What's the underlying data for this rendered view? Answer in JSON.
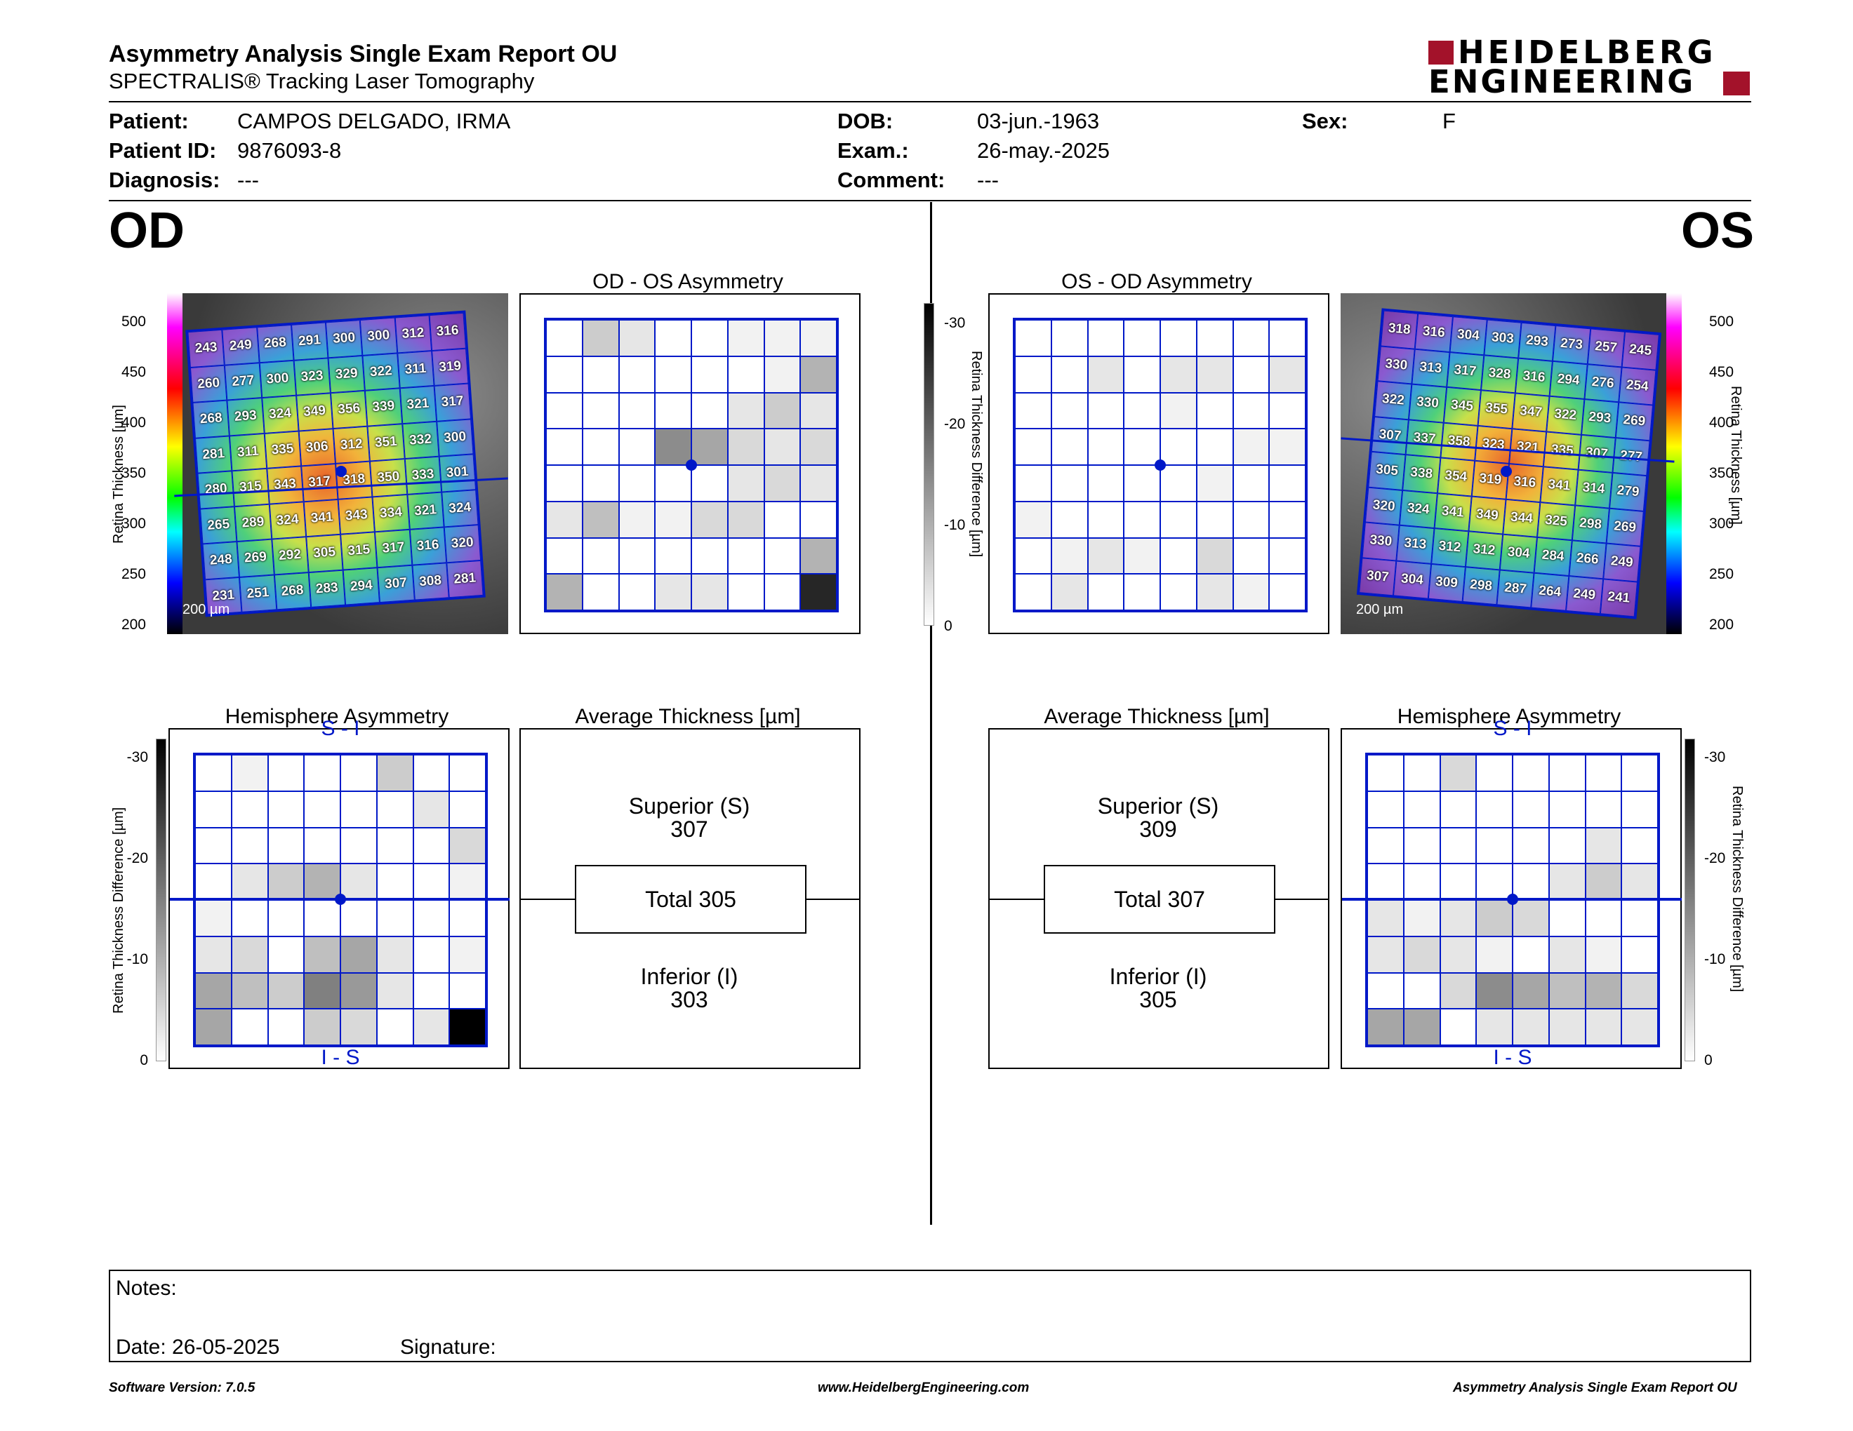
{
  "header": {
    "title": "Asymmetry Analysis Single Exam Report OU",
    "subtitle": "SPECTRALIS® Tracking Laser Tomography",
    "logo_line1": "HEIDELBERG",
    "logo_line2": "ENGINEERING"
  },
  "patient": {
    "patient_label": "Patient:",
    "patient_value": "CAMPOS DELGADO, IRMA",
    "id_label": "Patient ID:",
    "id_value": "9876093-8",
    "diagnosis_label": "Diagnosis:",
    "diagnosis_value": "---",
    "dob_label": "DOB:",
    "dob_value": "03-jun.-1963",
    "exam_label": "Exam.:",
    "exam_value": "26-may.-2025",
    "comment_label": "Comment:",
    "comment_value": "---",
    "sex_label": "Sex:",
    "sex_value": "F"
  },
  "od": {
    "eye_label": "OD",
    "thickness_axis_label": "Retina Thickness [µm]",
    "thickness_ticks": [
      "500",
      "450",
      "400",
      "350",
      "300",
      "250",
      "200"
    ],
    "scale_label": "200 µm",
    "thickness_grid": [
      [
        "243",
        "249",
        "268",
        "291",
        "300",
        "300",
        "312",
        "316"
      ],
      [
        "260",
        "277",
        "300",
        "323",
        "329",
        "322",
        "311",
        "319"
      ],
      [
        "268",
        "293",
        "324",
        "349",
        "356",
        "339",
        "321",
        "317"
      ],
      [
        "281",
        "311",
        "335",
        "306",
        "312",
        "351",
        "332",
        "300"
      ],
      [
        "280",
        "315",
        "343",
        "317",
        "318",
        "350",
        "333",
        "301"
      ],
      [
        "265",
        "289",
        "324",
        "341",
        "343",
        "334",
        "321",
        "324"
      ],
      [
        "248",
        "269",
        "292",
        "305",
        "315",
        "317",
        "316",
        "320"
      ],
      [
        "231",
        "251",
        "268",
        "283",
        "294",
        "307",
        "308",
        "281"
      ]
    ],
    "asym_title": "OD - OS Asymmetry",
    "asym_levels": [
      [
        0,
        0.2,
        0.1,
        0,
        0,
        0.05,
        0.05,
        0.05
      ],
      [
        0,
        0,
        0,
        0,
        0,
        0,
        0.05,
        0.3
      ],
      [
        0,
        0,
        0,
        0,
        0,
        0.1,
        0.2,
        0.1
      ],
      [
        0,
        0,
        0,
        0.45,
        0.35,
        0.15,
        0.1,
        0.15
      ],
      [
        0,
        0,
        0,
        0,
        0,
        0.1,
        0.15,
        0.1
      ],
      [
        0.1,
        0.25,
        0.05,
        0.05,
        0.15,
        0.15,
        0,
        0
      ],
      [
        0,
        0,
        0,
        0,
        0,
        0,
        0,
        0.3
      ],
      [
        0.3,
        0,
        0,
        0.1,
        0.1,
        0,
        0,
        0.85
      ]
    ],
    "hemi_title": "Hemisphere Asymmetry",
    "hemi_top": "S - I",
    "hemi_bottom": "I - S",
    "hemi_levels": [
      [
        0,
        0.05,
        0,
        0,
        0,
        0.2,
        0,
        0
      ],
      [
        0,
        0,
        0,
        0,
        0,
        0,
        0.1,
        0
      ],
      [
        0,
        0,
        0,
        0,
        0,
        0,
        0,
        0.15
      ],
      [
        0,
        0.1,
        0.2,
        0.3,
        0.1,
        0,
        0,
        0.05
      ],
      [
        0.05,
        0,
        0,
        0,
        0,
        0,
        0,
        0
      ],
      [
        0.1,
        0.15,
        0,
        0.25,
        0.35,
        0.1,
        0,
        0.05
      ],
      [
        0.35,
        0.25,
        0.2,
        0.5,
        0.4,
        0.1,
        0,
        0
      ],
      [
        0.35,
        0,
        0,
        0.2,
        0.15,
        0,
        0.1,
        1.0
      ]
    ],
    "avg_title": "Average Thickness [µm]",
    "superior_label": "Superior (S)",
    "superior_value": "307",
    "total_label": "Total 305",
    "inferior_label": "Inferior (I)",
    "inferior_value": "303"
  },
  "os": {
    "eye_label": "OS",
    "thickness_axis_label": "Retina Thickness [µm]",
    "thickness_ticks": [
      "500",
      "450",
      "400",
      "350",
      "300",
      "250",
      "200"
    ],
    "scale_label": "200 µm",
    "thickness_grid": [
      [
        "318",
        "316",
        "304",
        "303",
        "293",
        "273",
        "257",
        "245"
      ],
      [
        "330",
        "313",
        "317",
        "328",
        "316",
        "294",
        "276",
        "254"
      ],
      [
        "322",
        "330",
        "345",
        "355",
        "347",
        "322",
        "293",
        "269"
      ],
      [
        "307",
        "337",
        "358",
        "323",
        "321",
        "335",
        "307",
        "277"
      ],
      [
        "305",
        "338",
        "354",
        "319",
        "316",
        "341",
        "314",
        "279"
      ],
      [
        "320",
        "324",
        "341",
        "349",
        "344",
        "325",
        "298",
        "269"
      ],
      [
        "330",
        "313",
        "312",
        "312",
        "304",
        "284",
        "266",
        "249"
      ],
      [
        "307",
        "304",
        "309",
        "298",
        "287",
        "264",
        "249",
        "241"
      ]
    ],
    "asym_title": "OS - OD Asymmetry",
    "asym_levels": [
      [
        0,
        0,
        0,
        0,
        0,
        0,
        0,
        0
      ],
      [
        0,
        0,
        0.1,
        0,
        0.1,
        0.1,
        0,
        0.1
      ],
      [
        0,
        0,
        0,
        0,
        0.05,
        0,
        0,
        0
      ],
      [
        0,
        0,
        0,
        0,
        0,
        0,
        0.05,
        0.05
      ],
      [
        0,
        0,
        0,
        0,
        0,
        0.05,
        0,
        0
      ],
      [
        0.05,
        0,
        0,
        0,
        0,
        0,
        0,
        0
      ],
      [
        0,
        0.05,
        0.1,
        0.05,
        0,
        0.15,
        0,
        0
      ],
      [
        0,
        0.1,
        0,
        0,
        0,
        0.1,
        0.05,
        0
      ]
    ],
    "hemi_title": "Hemisphere Asymmetry",
    "hemi_top": "S - I",
    "hemi_bottom": "I - S",
    "hemi_levels": [
      [
        0,
        0,
        0.15,
        0,
        0,
        0,
        0,
        0
      ],
      [
        0,
        0,
        0,
        0,
        0,
        0,
        0,
        0
      ],
      [
        0,
        0,
        0,
        0,
        0,
        0,
        0.1,
        0
      ],
      [
        0,
        0,
        0,
        0,
        0,
        0.1,
        0.2,
        0.1
      ],
      [
        0.1,
        0.05,
        0.1,
        0.2,
        0.15,
        0,
        0,
        0
      ],
      [
        0.1,
        0.15,
        0.1,
        0.05,
        0,
        0.1,
        0.05,
        0
      ],
      [
        0,
        0,
        0.15,
        0.45,
        0.35,
        0.25,
        0.3,
        0.15
      ],
      [
        0.35,
        0.35,
        0,
        0.1,
        0.1,
        0.1,
        0.1,
        0.1
      ]
    ],
    "avg_title": "Average Thickness [µm]",
    "superior_label": "Superior (S)",
    "superior_value": "309",
    "total_label": "Total 307",
    "inferior_label": "Inferior (I)",
    "inferior_value": "305"
  },
  "diff_axis": {
    "label": "Retina Thickness Difference [µm]",
    "ticks": [
      "-30",
      "-20",
      "-10",
      "0"
    ]
  },
  "notes": {
    "notes_label": "Notes:",
    "date_label": "Date: 26-05-2025",
    "signature_label": "Signature:"
  },
  "footer": {
    "software": "Software Version: 7.0.5",
    "website": "www.HeidelbergEngineering.com",
    "report": "Asymmetry Analysis Single Exam Report OU"
  },
  "colors": {
    "grid": "#0018c8",
    "logo_red": "#a3122a"
  }
}
